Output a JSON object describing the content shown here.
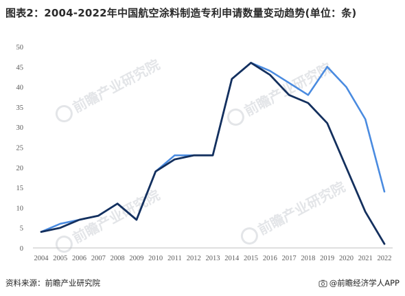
{
  "title": "图表2：2004-2022年中国航空涂料制造专利申请数量变动趋势(单位：条)",
  "source": "资料来源：前瞻产业研究院",
  "brand": "@前瞻经济学人APP",
  "watermark": "前瞻产业研究院",
  "chart_data": {
    "type": "line",
    "title": "图表2：2004-2022年中国航空涂料制造专利申请数量变动趋势(单位：条)",
    "x": [
      "2004",
      "2005",
      "2006",
      "2007",
      "2008",
      "2009",
      "2010",
      "2011",
      "2012",
      "2013",
      "2014",
      "2015",
      "2016",
      "2017",
      "2018",
      "2019",
      "2020",
      "2021",
      "2022"
    ],
    "ylim": [
      0,
      50
    ],
    "yticks": [
      0,
      5,
      10,
      15,
      20,
      25,
      30,
      35,
      40,
      45,
      50
    ],
    "grid": false,
    "legend": "none",
    "series": [
      {
        "color": "#4a8be0",
        "values": [
          4,
          6,
          7,
          8,
          11,
          7,
          19,
          23,
          23,
          23,
          42,
          46,
          44,
          41,
          38,
          45,
          40,
          32,
          14
        ]
      },
      {
        "color": "#14305e",
        "values": [
          4,
          5,
          7,
          8,
          11,
          7,
          19,
          22,
          23,
          23,
          42,
          46,
          43,
          38,
          36,
          31,
          20,
          9,
          1
        ]
      }
    ]
  }
}
